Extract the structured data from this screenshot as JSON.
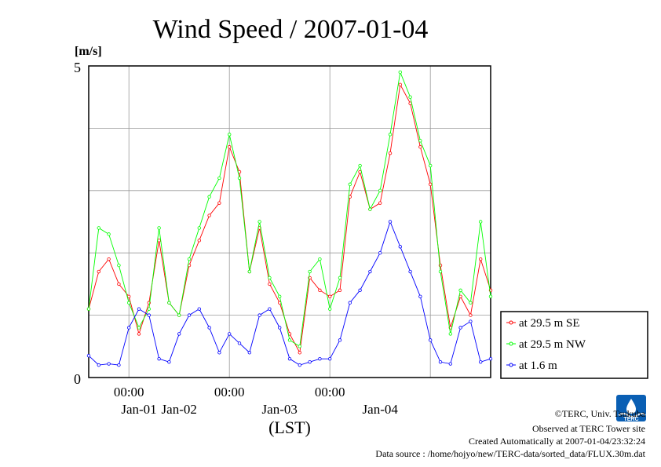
{
  "chart_data": {
    "type": "line",
    "title": "Wind Speed / 2007-01-04",
    "ylabel": "[m/s]",
    "xlabel": "(LST)",
    "ylim": [
      0,
      5
    ],
    "y_ticks": [
      "0",
      "5"
    ],
    "x_ticks": [
      "00:00",
      "00:00",
      "00:00"
    ],
    "day_labels": [
      "Jan-01",
      "Jan-02",
      "Jan-03",
      "Jan-04"
    ],
    "grid": true,
    "legend_position": "right",
    "x_unit": "hours since 2007-01-01 00:00 LST",
    "xlim": [
      -9.6,
      86.4
    ],
    "series": [
      {
        "name": "at 29.5 m SE",
        "color": "#ff0000",
        "points": [
          [
            -9.6,
            1.1
          ],
          [
            -7.2,
            1.7
          ],
          [
            -4.8,
            1.9
          ],
          [
            -2.4,
            1.5
          ],
          [
            0,
            1.3
          ],
          [
            2.4,
            0.7
          ],
          [
            4.8,
            1.2
          ],
          [
            7.2,
            2.2
          ],
          [
            9.6,
            1.2
          ],
          [
            12,
            1.0
          ],
          [
            14.4,
            1.8
          ],
          [
            16.8,
            2.2
          ],
          [
            19.2,
            2.6
          ],
          [
            21.6,
            2.8
          ],
          [
            24,
            3.7
          ],
          [
            26.4,
            3.3
          ],
          [
            28.8,
            1.7
          ],
          [
            31.2,
            2.4
          ],
          [
            33.6,
            1.5
          ],
          [
            36,
            1.2
          ],
          [
            38.4,
            0.7
          ],
          [
            40.8,
            0.4
          ],
          [
            43.2,
            1.6
          ],
          [
            45.6,
            1.4
          ],
          [
            48,
            1.3
          ],
          [
            50.4,
            1.4
          ],
          [
            52.8,
            2.9
          ],
          [
            55.2,
            3.3
          ],
          [
            57.6,
            2.7
          ],
          [
            60,
            2.8
          ],
          [
            62.4,
            3.6
          ],
          [
            64.8,
            4.7
          ],
          [
            67.2,
            4.4
          ],
          [
            69.6,
            3.7
          ],
          [
            72,
            3.1
          ],
          [
            74.4,
            1.8
          ],
          [
            76.8,
            0.8
          ],
          [
            79.2,
            1.3
          ],
          [
            81.6,
            1.0
          ],
          [
            84,
            1.9
          ],
          [
            86.4,
            1.4
          ]
        ]
      },
      {
        "name": "at 29.5 m NW",
        "color": "#00ff00",
        "points": [
          [
            -9.6,
            1.1
          ],
          [
            -7.2,
            2.4
          ],
          [
            -4.8,
            2.3
          ],
          [
            -2.4,
            1.8
          ],
          [
            0,
            1.2
          ],
          [
            2.4,
            0.8
          ],
          [
            4.8,
            1.1
          ],
          [
            7.2,
            2.4
          ],
          [
            9.6,
            1.2
          ],
          [
            12,
            1.0
          ],
          [
            14.4,
            1.9
          ],
          [
            16.8,
            2.4
          ],
          [
            19.2,
            2.9
          ],
          [
            21.6,
            3.2
          ],
          [
            24,
            3.9
          ],
          [
            26.4,
            3.2
          ],
          [
            28.8,
            1.7
          ],
          [
            31.2,
            2.5
          ],
          [
            33.6,
            1.6
          ],
          [
            36,
            1.3
          ],
          [
            38.4,
            0.6
          ],
          [
            40.8,
            0.5
          ],
          [
            43.2,
            1.7
          ],
          [
            45.6,
            1.9
          ],
          [
            48,
            1.1
          ],
          [
            50.4,
            1.6
          ],
          [
            52.8,
            3.1
          ],
          [
            55.2,
            3.4
          ],
          [
            57.6,
            2.7
          ],
          [
            60,
            3.0
          ],
          [
            62.4,
            3.9
          ],
          [
            64.8,
            4.9
          ],
          [
            67.2,
            4.5
          ],
          [
            69.6,
            3.8
          ],
          [
            72,
            3.4
          ],
          [
            74.4,
            1.7
          ],
          [
            76.8,
            0.7
          ],
          [
            79.2,
            1.4
          ],
          [
            81.6,
            1.2
          ],
          [
            84,
            2.5
          ],
          [
            86.4,
            1.3
          ]
        ]
      },
      {
        "name": "at 1.6 m",
        "color": "#0000ff",
        "points": [
          [
            -9.6,
            0.35
          ],
          [
            -7.2,
            0.2
          ],
          [
            -4.8,
            0.22
          ],
          [
            -2.4,
            0.2
          ],
          [
            0,
            0.8
          ],
          [
            2.4,
            1.1
          ],
          [
            4.8,
            1.0
          ],
          [
            7.2,
            0.3
          ],
          [
            9.6,
            0.25
          ],
          [
            12,
            0.7
          ],
          [
            14.4,
            1.0
          ],
          [
            16.8,
            1.1
          ],
          [
            19.2,
            0.8
          ],
          [
            21.6,
            0.4
          ],
          [
            24,
            0.7
          ],
          [
            26.4,
            0.55
          ],
          [
            28.8,
            0.4
          ],
          [
            31.2,
            1.0
          ],
          [
            33.6,
            1.1
          ],
          [
            36,
            0.8
          ],
          [
            38.4,
            0.3
          ],
          [
            40.8,
            0.2
          ],
          [
            43.2,
            0.25
          ],
          [
            45.6,
            0.3
          ],
          [
            48,
            0.3
          ],
          [
            50.4,
            0.6
          ],
          [
            52.8,
            1.2
          ],
          [
            55.2,
            1.4
          ],
          [
            57.6,
            1.7
          ],
          [
            60,
            2.0
          ],
          [
            62.4,
            2.5
          ],
          [
            64.8,
            2.1
          ],
          [
            67.2,
            1.7
          ],
          [
            69.6,
            1.3
          ],
          [
            72,
            0.6
          ],
          [
            74.4,
            0.25
          ],
          [
            76.8,
            0.22
          ],
          [
            79.2,
            0.8
          ],
          [
            81.6,
            0.9
          ],
          [
            84,
            0.25
          ],
          [
            86.4,
            0.3
          ]
        ]
      }
    ]
  },
  "footer": {
    "copyright": "©TERC, Univ. Tsukuba",
    "observed": "Observed at TERC Tower site",
    "created": "Created Automatically at 2007-01-04/23:32:24",
    "source": "Data source : /home/hojyo/new/TERC-data/sorted_data/FLUX.30m.dat"
  },
  "logo": {
    "text": "TERC",
    "color": "#0a5fb4"
  }
}
